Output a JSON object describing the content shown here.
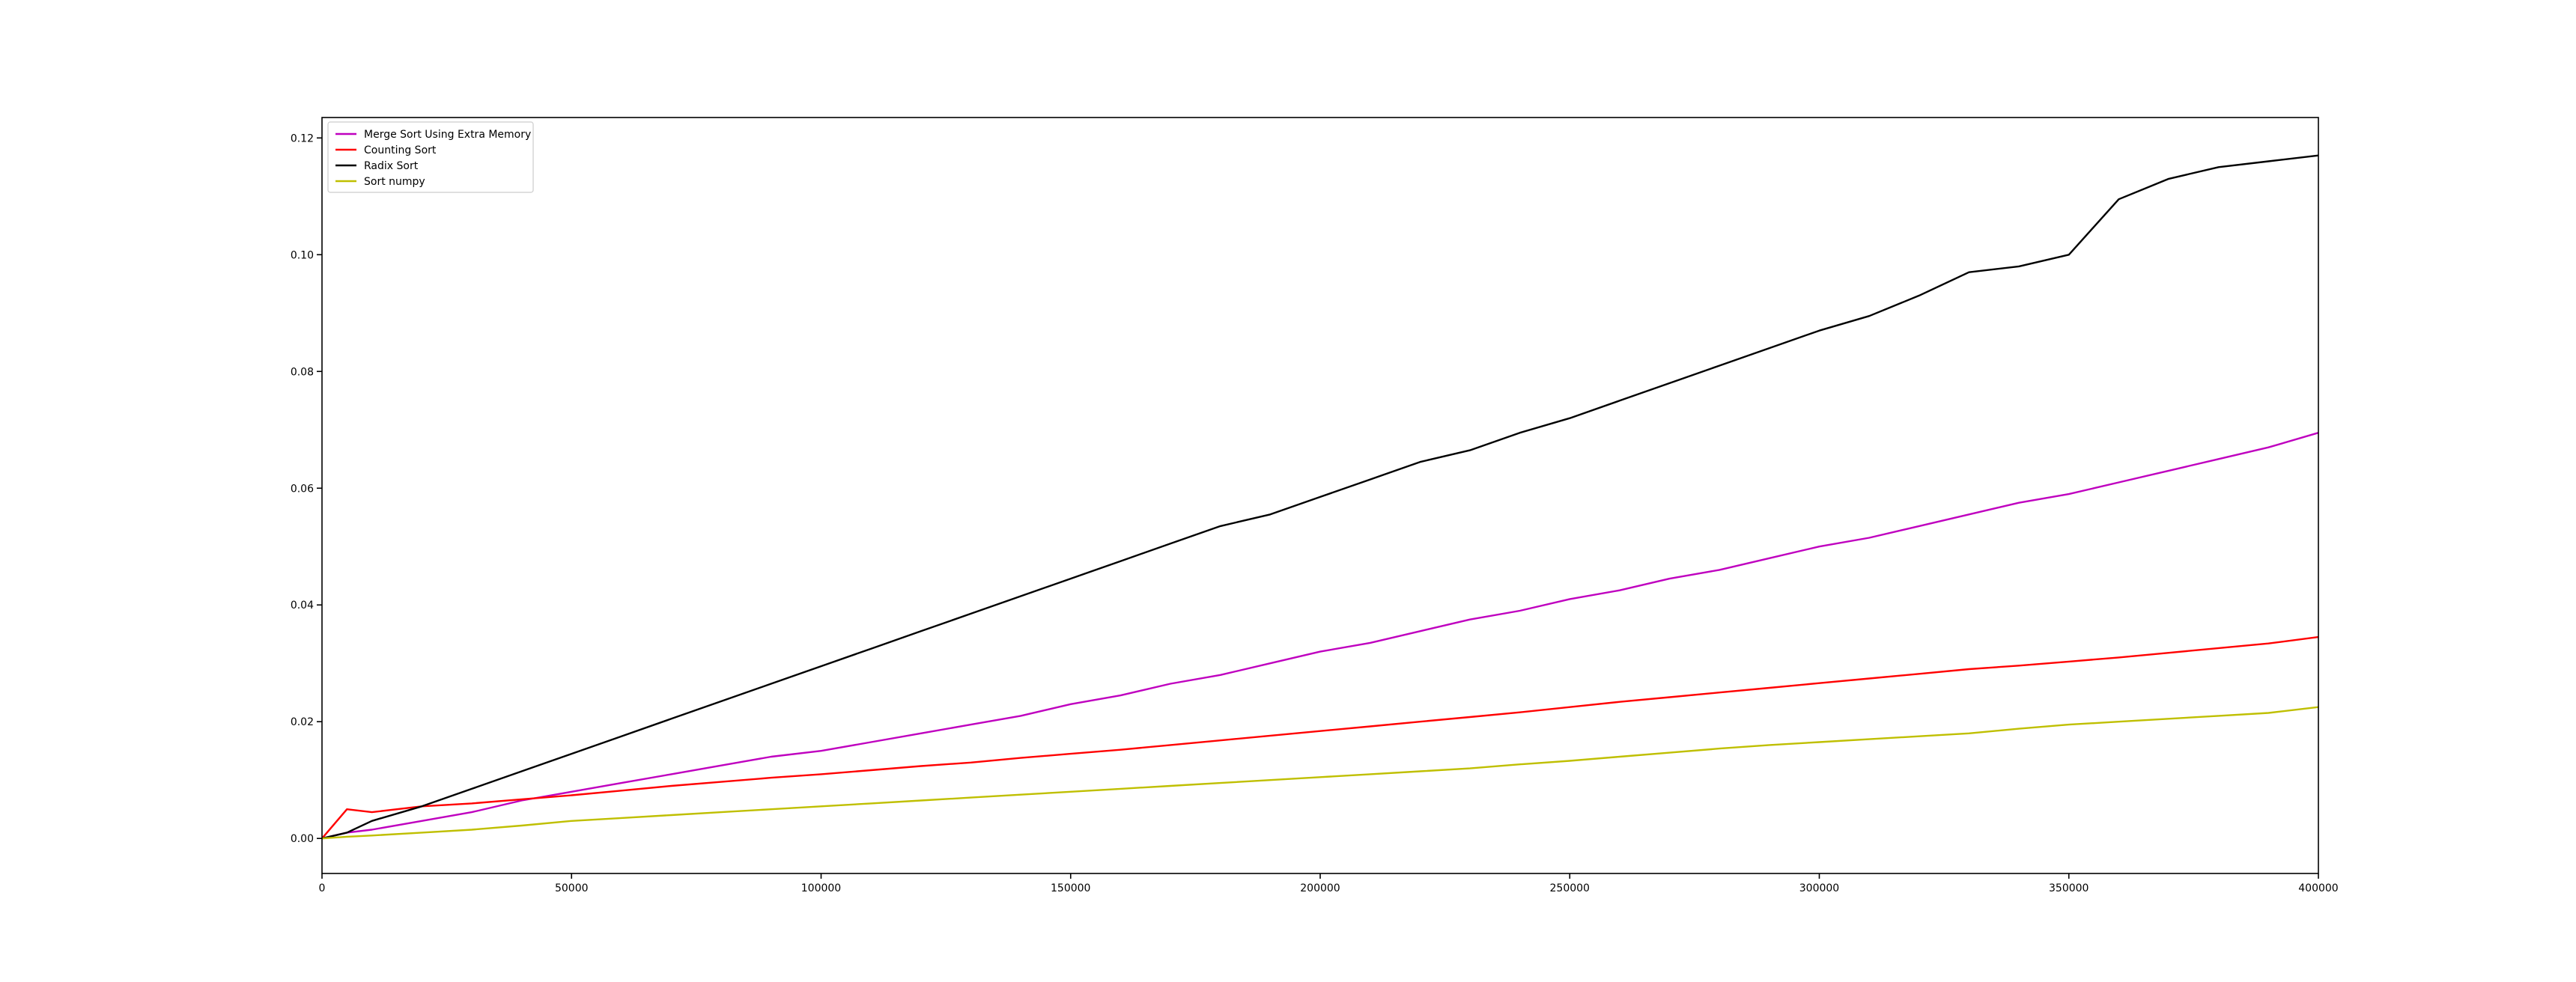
{
  "chart_data": {
    "type": "line",
    "title": "",
    "xlabel": "",
    "ylabel": "",
    "xlim": [
      0,
      400000
    ],
    "ylim": [
      -0.006,
      0.1235
    ],
    "x_ticks": [
      0,
      50000,
      100000,
      150000,
      200000,
      250000,
      300000,
      350000,
      400000
    ],
    "x_tick_labels": [
      "0",
      "50000",
      "100000",
      "150000",
      "200000",
      "250000",
      "300000",
      "350000",
      "400000"
    ],
    "y_ticks": [
      0.0,
      0.02,
      0.04,
      0.06,
      0.08,
      0.1,
      0.12
    ],
    "y_tick_labels": [
      "0.00",
      "0.02",
      "0.04",
      "0.06",
      "0.08",
      "0.10",
      "0.12"
    ],
    "grid": false,
    "legend_position": "top-left",
    "x": [
      0,
      5000,
      10000,
      20000,
      30000,
      40000,
      50000,
      60000,
      70000,
      80000,
      90000,
      100000,
      110000,
      120000,
      130000,
      140000,
      150000,
      160000,
      170000,
      180000,
      190000,
      200000,
      210000,
      220000,
      230000,
      240000,
      250000,
      260000,
      270000,
      280000,
      290000,
      300000,
      310000,
      320000,
      330000,
      340000,
      350000,
      360000,
      370000,
      380000,
      390000,
      400000
    ],
    "series": [
      {
        "name": "Merge Sort Using Extra Memory",
        "color": "#bf00bf",
        "values": [
          0.0,
          0.001,
          0.0015,
          0.003,
          0.0045,
          0.0065,
          0.008,
          0.0095,
          0.011,
          0.0125,
          0.014,
          0.015,
          0.0165,
          0.018,
          0.0195,
          0.021,
          0.023,
          0.0245,
          0.0265,
          0.028,
          0.03,
          0.032,
          0.0335,
          0.0355,
          0.0375,
          0.039,
          0.041,
          0.0425,
          0.0445,
          0.046,
          0.048,
          0.05,
          0.0515,
          0.0535,
          0.0555,
          0.0575,
          0.059,
          0.061,
          0.063,
          0.065,
          0.067,
          0.0695
        ]
      },
      {
        "name": "Counting Sort",
        "color": "#ff0000",
        "values": [
          0.0,
          0.005,
          0.0045,
          0.0055,
          0.006,
          0.0067,
          0.0074,
          0.0082,
          0.009,
          0.0097,
          0.0104,
          0.011,
          0.0117,
          0.0124,
          0.013,
          0.0138,
          0.0145,
          0.0152,
          0.016,
          0.0168,
          0.0176,
          0.0184,
          0.0192,
          0.02,
          0.0208,
          0.0216,
          0.0225,
          0.0234,
          0.0242,
          0.025,
          0.0258,
          0.0266,
          0.0274,
          0.0282,
          0.029,
          0.0296,
          0.0303,
          0.031,
          0.0318,
          0.0326,
          0.0334,
          0.0345
        ]
      },
      {
        "name": "Radix Sort",
        "color": "#000000",
        "values": [
          0.0,
          0.001,
          0.003,
          0.0055,
          0.0085,
          0.0115,
          0.0145,
          0.0175,
          0.0205,
          0.0235,
          0.0265,
          0.0295,
          0.0325,
          0.0355,
          0.0385,
          0.0415,
          0.0445,
          0.0475,
          0.0505,
          0.0535,
          0.0555,
          0.0585,
          0.0615,
          0.0645,
          0.0665,
          0.0695,
          0.072,
          0.075,
          0.078,
          0.081,
          0.084,
          0.087,
          0.0895,
          0.093,
          0.097,
          0.098,
          0.1,
          0.1095,
          0.113,
          0.115,
          0.116,
          0.117
        ]
      },
      {
        "name": "Sort numpy",
        "color": "#bfbf00",
        "values": [
          0.0,
          0.0003,
          0.0005,
          0.001,
          0.0015,
          0.0022,
          0.003,
          0.0035,
          0.004,
          0.0045,
          0.005,
          0.0055,
          0.006,
          0.0065,
          0.007,
          0.0075,
          0.008,
          0.0085,
          0.009,
          0.0095,
          0.01,
          0.0105,
          0.011,
          0.0115,
          0.012,
          0.0127,
          0.0133,
          0.014,
          0.0147,
          0.0154,
          0.016,
          0.0165,
          0.017,
          0.0175,
          0.018,
          0.0188,
          0.0195,
          0.02,
          0.0205,
          0.021,
          0.0215,
          0.0225
        ]
      }
    ]
  }
}
